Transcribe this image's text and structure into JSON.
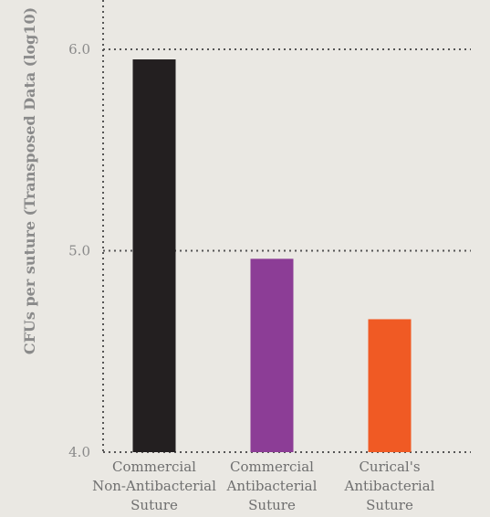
{
  "chart_data": {
    "type": "bar",
    "title": "",
    "xlabel": "",
    "ylabel": "CFUs per suture (Transposed Data (log10)",
    "ylim": [
      4.0,
      6.2
    ],
    "yticks": [
      "6.0",
      "5.0",
      "4.0"
    ],
    "ytick_values": [
      6.0,
      5.0,
      4.0
    ],
    "categories": [
      [
        "Commercial",
        "Non-Antibacterial",
        "Suture"
      ],
      [
        "Commercial",
        "Antibacterial",
        "Suture"
      ],
      [
        "Curical's",
        "Antibacterial",
        "Suture"
      ]
    ],
    "values": [
      5.95,
      4.96,
      4.66
    ],
    "colors": [
      "#231f20",
      "#8c3d96",
      "#f05a24"
    ],
    "grid": "dotted horizontal",
    "legend": "none"
  }
}
